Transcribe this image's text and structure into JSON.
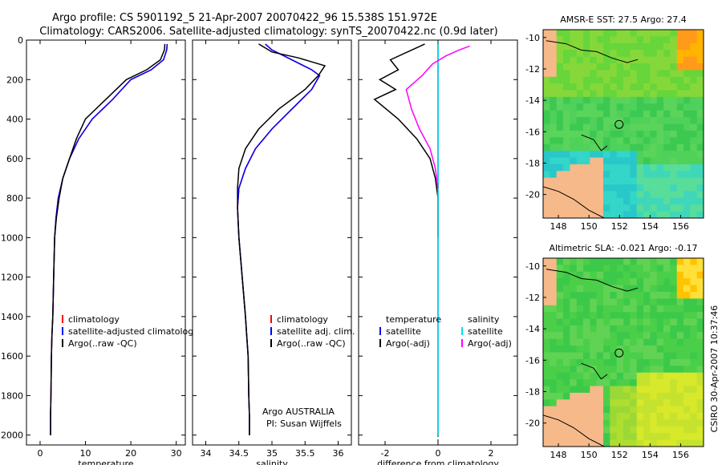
{
  "header": {
    "title_line1": "Argo profile: CS 5901192_5 21-Apr-2007 20070422_96 15.538S 151.972E",
    "title_line2": "Climatology: CARS2006. Satellite-adjusted climatology: synTS_20070422.nc (0.9d later)"
  },
  "side_label": "CSIRO 30-Apr-2007 10:37:46",
  "colors": {
    "climatology": "#ff0000",
    "satellite": "#0000ff",
    "argo": "#000000",
    "sal_satellite": "#00e5e5",
    "sal_argo": "#ff00ff",
    "land": "#f5b98a"
  },
  "chart_data": [
    {
      "type": "line",
      "xlabel": "temperature",
      "ylabel": "",
      "xlim": [
        -3,
        32
      ],
      "ylim": [
        2050,
        0
      ],
      "xticks": [
        0,
        10,
        20,
        30
      ],
      "yticks": [
        0,
        200,
        400,
        600,
        800,
        1000,
        1200,
        1400,
        1600,
        1800,
        2000
      ],
      "legend": [
        "climatology",
        "satellite-adjusted climatology",
        "Argo(..raw -QC)"
      ],
      "series": [
        {
          "name": "climatology",
          "color": "#ff0000",
          "x": [
            28,
            27.9,
            27.2,
            24.5,
            20,
            16,
            11.5,
            8.5,
            6.5,
            5,
            4,
            3.5,
            3.2,
            3,
            2.8,
            2.6,
            2.5,
            2.4,
            2.3,
            2.3
          ],
          "y": [
            20,
            50,
            100,
            150,
            200,
            300,
            400,
            500,
            600,
            700,
            800,
            900,
            1000,
            1200,
            1400,
            1500,
            1600,
            1800,
            1900,
            2000
          ]
        },
        {
          "name": "satellite-adjusted climatology",
          "color": "#0000ff",
          "x": [
            28,
            27.9,
            27.2,
            24.5,
            20,
            16,
            11.5,
            8.5,
            6.5,
            5,
            4,
            3.5,
            3.2,
            3,
            2.8,
            2.6,
            2.5,
            2.4,
            2.3,
            2.3
          ],
          "y": [
            20,
            50,
            100,
            150,
            200,
            300,
            400,
            500,
            600,
            700,
            800,
            900,
            1000,
            1200,
            1400,
            1500,
            1600,
            1800,
            1900,
            2000
          ]
        },
        {
          "name": "Argo(..raw -QC)",
          "color": "#000000",
          "x": [
            27.5,
            27.4,
            26.5,
            23.5,
            19,
            14.5,
            10,
            8,
            6.5,
            5,
            4.2,
            3.6,
            3.2,
            3,
            2.8,
            2.6,
            2.5,
            2.4,
            2.3,
            2.3
          ],
          "y": [
            20,
            50,
            100,
            150,
            200,
            300,
            400,
            500,
            600,
            700,
            800,
            900,
            1000,
            1200,
            1400,
            1500,
            1600,
            1800,
            1900,
            2000
          ]
        }
      ]
    },
    {
      "type": "line",
      "xlabel": "salinity",
      "xlim": [
        33.8,
        36.2
      ],
      "ylim": [
        2050,
        0
      ],
      "xticks": [
        34,
        34.5,
        35,
        35.5,
        36
      ],
      "legend": [
        "climatology",
        "satellite adj. clim.",
        "Argo(..raw -QC)"
      ],
      "annotations": [
        "Argo AUSTRALIA",
        "PI: Susan Wijffels"
      ],
      "series": [
        {
          "name": "climatology",
          "color": "#ff0000",
          "x": [
            34.9,
            35.0,
            35.3,
            35.6,
            35.72,
            35.6,
            35.3,
            35.0,
            34.75,
            34.6,
            34.5,
            34.48,
            34.5,
            34.55,
            34.6,
            34.62,
            34.64,
            34.65,
            34.66,
            34.66
          ],
          "y": [
            20,
            50,
            100,
            150,
            180,
            250,
            350,
            450,
            550,
            650,
            750,
            850,
            1000,
            1200,
            1400,
            1500,
            1600,
            1800,
            1900,
            2000
          ]
        },
        {
          "name": "satellite adj. clim.",
          "color": "#0000ff",
          "x": [
            34.9,
            35.0,
            35.3,
            35.6,
            35.72,
            35.6,
            35.3,
            35.0,
            34.75,
            34.6,
            34.5,
            34.48,
            34.5,
            34.55,
            34.6,
            34.62,
            34.64,
            34.65,
            34.66,
            34.66
          ],
          "y": [
            20,
            50,
            100,
            150,
            180,
            250,
            350,
            450,
            550,
            650,
            750,
            850,
            1000,
            1200,
            1400,
            1500,
            1600,
            1800,
            1900,
            2000
          ]
        },
        {
          "name": "Argo(..raw -QC)",
          "color": "#000000",
          "x": [
            34.8,
            35.0,
            35.4,
            35.8,
            35.7,
            35.5,
            35.1,
            34.8,
            34.6,
            34.5,
            34.48,
            34.48,
            34.5,
            34.55,
            34.6,
            34.62,
            34.64,
            34.65,
            34.66,
            34.66
          ],
          "y": [
            20,
            60,
            90,
            130,
            180,
            250,
            350,
            450,
            550,
            650,
            750,
            850,
            1000,
            1200,
            1400,
            1500,
            1600,
            1800,
            1900,
            2000
          ]
        }
      ]
    },
    {
      "type": "line",
      "xlabel": "difference from climatology",
      "xlim": [
        -3,
        3
      ],
      "ylim": [
        2050,
        0
      ],
      "xticks": [
        -2,
        0,
        2
      ],
      "legend": [
        "temperature",
        "satellite",
        "Argo(-adj)",
        "salinity",
        "satellite",
        "Argo(-adj)"
      ],
      "series": [
        {
          "name": "satellite",
          "color": "#0000ff",
          "x": [
            0,
            0,
            0,
            0,
            0,
            0,
            0,
            0,
            0,
            0,
            0,
            0
          ],
          "y": [
            20,
            100,
            200,
            300,
            400,
            600,
            800,
            1000,
            1200,
            1500,
            1800,
            2000
          ]
        },
        {
          "name": "Argo(-adj)",
          "color": "#000000",
          "x": [
            -0.5,
            -1.8,
            -1.5,
            -2.2,
            -1.6,
            -2.4,
            -1.5,
            -0.8,
            -0.3,
            -0.1,
            0,
            0,
            0
          ],
          "y": [
            20,
            100,
            150,
            200,
            250,
            300,
            400,
            500,
            600,
            700,
            800,
            900,
            1000
          ]
        },
        {
          "name": "satellite",
          "color": "#00e5e5",
          "x": [
            0,
            0,
            0,
            0,
            0,
            0,
            0,
            0,
            0,
            0,
            0
          ],
          "y": [
            20,
            100,
            200,
            300,
            400,
            600,
            800,
            1000,
            1200,
            1500,
            2000
          ]
        },
        {
          "name": "Argo(-adj)",
          "color": "#ff00ff",
          "x": [
            1.2,
            0.8,
            0.3,
            -0.2,
            -0.6,
            -1.2,
            -1.0,
            -0.7,
            -0.3,
            -0.1,
            0
          ],
          "y": [
            30,
            50,
            80,
            120,
            180,
            250,
            350,
            450,
            550,
            650,
            750
          ]
        }
      ]
    },
    {
      "type": "heatmap",
      "title": "AMSR-E SST: 27.5 Argo: 27.4",
      "xlim": [
        147,
        157.5
      ],
      "ylim": [
        -21.5,
        -9.5
      ],
      "xticks": [
        148,
        150,
        152,
        154,
        156
      ],
      "yticks": [
        -10,
        -12,
        -14,
        -16,
        -18,
        -20
      ]
    },
    {
      "type": "heatmap",
      "title": "Altimetric SLA: -0.021 Argo: -0.17",
      "xlim": [
        147,
        157.5
      ],
      "ylim": [
        -21.5,
        -9.5
      ],
      "xticks": [
        148,
        150,
        152,
        154,
        156
      ],
      "yticks": [
        -10,
        -12,
        -14,
        -16,
        -18,
        -20
      ]
    }
  ]
}
